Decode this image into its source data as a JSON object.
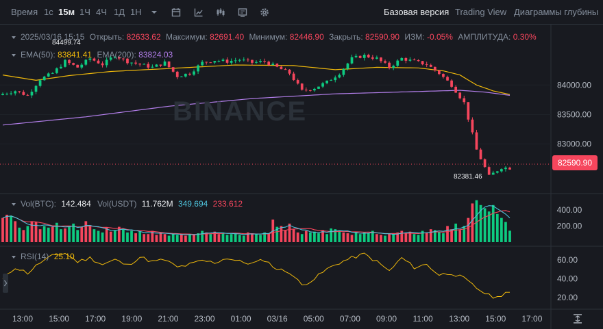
{
  "toolbar": {
    "time_label": "Время",
    "intervals": [
      "1с",
      "15м",
      "1Ч",
      "4Ч",
      "1Д",
      "1Н"
    ],
    "active_interval": "15м",
    "views": [
      "Базовая версия",
      "Trading View",
      "Диаграммы глубины"
    ],
    "active_view": "Базовая версия"
  },
  "info": {
    "date": "2025/03/16 15:15",
    "open_label": "Открыть:",
    "open": "82633.62",
    "high_label": "Максимум:",
    "high": "82691.40",
    "low_label": "Минимум:",
    "low": "82446.90",
    "close_label": "Закрыть:",
    "close": "82590.90",
    "change_label": "ИЗМ:",
    "change": "-0.05%",
    "amp_label": "АМПЛИТУДА:",
    "amp": "0.30%"
  },
  "ema": {
    "ema50_label": "EMA(50):",
    "ema50": "83841.41",
    "ema200_label": "EMA(200):",
    "ema200": "83824.03"
  },
  "vol": {
    "btc_label": "Vol(BTC):",
    "btc": "142.484",
    "usdt_label": "Vol(USDT)",
    "usdt": "11.762M",
    "ma1": "349.694",
    "ma2": "233.612"
  },
  "rsi": {
    "label": "RSI(14)",
    "value": "25.10"
  },
  "price_tag": "82590.90",
  "low_tag": "82381.46",
  "high_tag": "84499.74",
  "watermark": "BINANCE",
  "colors": {
    "up": "#0ecb81",
    "down": "#f6465d",
    "ema50": "#f0b90b",
    "ema200": "#b37feb",
    "rsi": "#f0b90b",
    "vol_ma1": "#4fc3dc",
    "vol_ma2": "#f6465d"
  },
  "chart_data": {
    "type": "candlestick",
    "price_axis": {
      "ticks": [
        84000,
        83500,
        83000
      ],
      "tick_labels": [
        "84000.00",
        "83500.00",
        "83000.00"
      ],
      "range": [
        82250,
        84700
      ]
    },
    "volume_axis": {
      "ticks": [
        400,
        200
      ],
      "tick_labels": [
        "400.00",
        "200.00"
      ],
      "range": [
        0,
        560
      ]
    },
    "rsi_axis": {
      "ticks": [
        60,
        40,
        20
      ],
      "tick_labels": [
        "60.00",
        "40.00",
        "20.00"
      ],
      "range": [
        12,
        70
      ]
    },
    "x_labels": [
      "13:00",
      "15:00",
      "17:00",
      "19:00",
      "21:00",
      "23:00",
      "01:00",
      "03/16",
      "05:00",
      "07:00",
      "09:00",
      "11:00",
      "13:00",
      "15:00",
      "17:00"
    ],
    "close_points": [
      [
        0,
        83850
      ],
      [
        3,
        83900
      ],
      [
        6,
        83820
      ],
      [
        9,
        84100
      ],
      [
        12,
        84200
      ],
      [
        15,
        84400
      ],
      [
        18,
        84300
      ],
      [
        21,
        84450
      ],
      [
        24,
        84350
      ],
      [
        27,
        84500
      ],
      [
        30,
        84400
      ],
      [
        33,
        84350
      ],
      [
        36,
        84300
      ],
      [
        39,
        84380
      ],
      [
        42,
        84150
      ],
      [
        45,
        84200
      ],
      [
        48,
        84380
      ],
      [
        51,
        84420
      ],
      [
        54,
        84400
      ],
      [
        57,
        84430
      ],
      [
        60,
        84380
      ],
      [
        63,
        84400
      ],
      [
        66,
        84300
      ],
      [
        69,
        84200
      ],
      [
        72,
        83900
      ],
      [
        75,
        83950
      ],
      [
        78,
        84050
      ],
      [
        81,
        84200
      ],
      [
        84,
        84450
      ],
      [
        87,
        84500
      ],
      [
        90,
        84450
      ],
      [
        93,
        84300
      ],
      [
        96,
        84450
      ],
      [
        99,
        84400
      ],
      [
        102,
        84350
      ],
      [
        105,
        84200
      ],
      [
        108,
        84000
      ],
      [
        111,
        83700
      ],
      [
        114,
        82900
      ],
      [
        117,
        82450
      ],
      [
        120,
        82600
      ],
      [
        122,
        82590
      ]
    ],
    "ema50_points": [
      [
        0,
        84170
      ],
      [
        8,
        84080
      ],
      [
        16,
        84160
      ],
      [
        26,
        84230
      ],
      [
        40,
        84280
      ],
      [
        56,
        84340
      ],
      [
        70,
        84330
      ],
      [
        80,
        84260
      ],
      [
        90,
        84300
      ],
      [
        100,
        84290
      ],
      [
        106,
        84240
      ],
      [
        110,
        84170
      ],
      [
        114,
        84000
      ],
      [
        118,
        83900
      ],
      [
        122,
        83840
      ]
    ],
    "ema200_points": [
      [
        0,
        83320
      ],
      [
        20,
        83460
      ],
      [
        40,
        83640
      ],
      [
        60,
        83770
      ],
      [
        80,
        83850
      ],
      [
        100,
        83890
      ],
      [
        110,
        83910
      ],
      [
        116,
        83880
      ],
      [
        122,
        83824
      ]
    ],
    "volume": [
      300,
      340,
      330,
      260,
      180,
      150,
      200,
      260,
      250,
      160,
      200,
      180,
      190,
      240,
      160,
      170,
      200,
      230,
      150,
      190,
      260,
      210,
      160,
      140,
      120,
      180,
      130,
      150,
      190,
      160,
      120,
      140,
      110,
      130,
      100,
      100,
      140,
      90,
      120,
      100,
      80,
      110,
      90,
      100,
      80,
      90,
      100,
      110,
      140,
      120,
      100,
      130,
      100,
      120,
      90,
      100,
      110,
      90,
      80,
      120,
      110,
      100,
      90,
      120,
      110,
      280,
      190,
      200,
      150,
      230,
      160,
      120,
      100,
      140,
      120,
      130,
      110,
      150,
      100,
      170,
      160,
      140,
      120,
      110,
      90,
      130,
      100,
      120,
      110,
      140,
      100,
      90,
      80,
      110,
      100,
      120,
      140,
      110,
      130,
      100,
      90,
      140,
      120,
      160,
      150,
      130,
      110,
      200,
      160,
      230,
      150,
      200,
      300,
      480,
      520,
      460,
      420,
      380,
      460,
      350,
      300,
      250,
      142
    ],
    "rsi_points": [
      [
        0,
        39
      ],
      [
        3,
        52
      ],
      [
        6,
        46
      ],
      [
        9,
        57
      ],
      [
        12,
        64
      ],
      [
        15,
        67
      ],
      [
        18,
        58
      ],
      [
        21,
        62
      ],
      [
        24,
        55
      ],
      [
        27,
        60
      ],
      [
        30,
        54
      ],
      [
        33,
        63
      ],
      [
        36,
        58
      ],
      [
        39,
        60
      ],
      [
        42,
        52
      ],
      [
        45,
        55
      ],
      [
        48,
        59
      ],
      [
        51,
        57
      ],
      [
        54,
        62
      ],
      [
        57,
        58
      ],
      [
        60,
        56
      ],
      [
        63,
        60
      ],
      [
        66,
        50
      ],
      [
        69,
        47
      ],
      [
        72,
        33
      ],
      [
        75,
        40
      ],
      [
        78,
        50
      ],
      [
        81,
        57
      ],
      [
        84,
        62
      ],
      [
        87,
        66
      ],
      [
        90,
        58
      ],
      [
        93,
        48
      ],
      [
        96,
        62
      ],
      [
        99,
        52
      ],
      [
        102,
        55
      ],
      [
        105,
        44
      ],
      [
        108,
        46
      ],
      [
        111,
        40
      ],
      [
        114,
        30
      ],
      [
        117,
        22
      ],
      [
        119,
        20
      ],
      [
        121,
        26
      ],
      [
        122,
        25
      ]
    ]
  }
}
